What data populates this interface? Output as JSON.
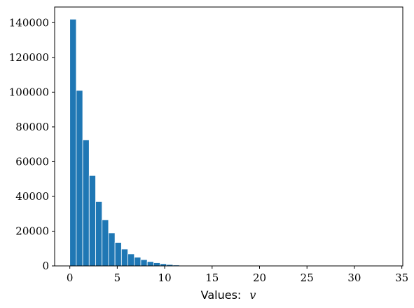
{
  "chart_data": {
    "type": "bar",
    "xlabel_text": "Values:",
    "xlabel_var": "v",
    "bar_color": "#1f77b4",
    "bar_edge_color": "#ffffff",
    "bin_width": 0.68,
    "bin_start": 0,
    "values": [
      142000,
      101000,
      72500,
      52000,
      37000,
      26500,
      19000,
      13500,
      9700,
      6900,
      5000,
      3600,
      2500,
      1800,
      1250,
      800,
      500,
      300,
      200,
      120,
      80,
      50,
      30,
      20,
      10
    ],
    "xlim": [
      -1.6,
      35.1
    ],
    "ylim": [
      0,
      149000
    ],
    "xticks": [
      0,
      5,
      10,
      15,
      20,
      25,
      30,
      35
    ],
    "xtick_labels": [
      "0",
      "5",
      "10",
      "15",
      "20",
      "25",
      "30",
      "35"
    ],
    "yticks": [
      0,
      20000,
      40000,
      60000,
      80000,
      100000,
      120000,
      140000
    ],
    "ytick_labels": [
      "0",
      "20000",
      "40000",
      "60000",
      "80000",
      "100000",
      "120000",
      "140000"
    ],
    "grid": false,
    "legend": "none"
  }
}
